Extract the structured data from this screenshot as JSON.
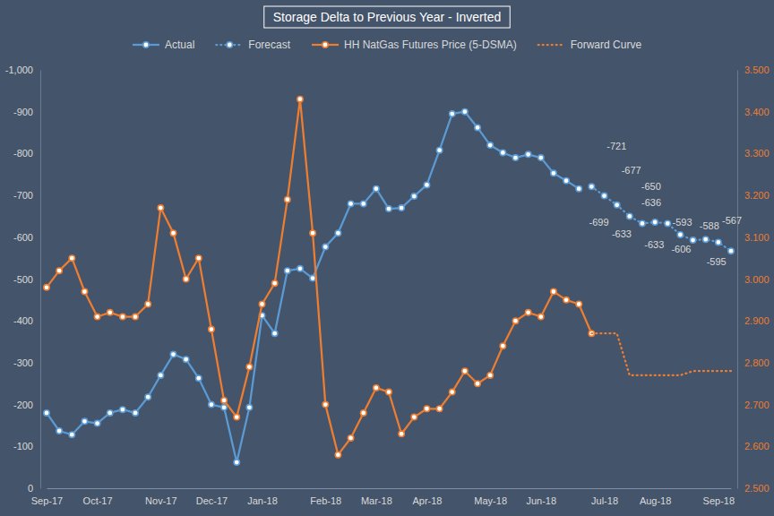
{
  "chart_data": {
    "type": "line",
    "title": "Storage Delta to Previous Year - Inverted",
    "categories": [
      "Sep-17",
      null,
      null,
      null,
      "Oct-17",
      null,
      null,
      null,
      null,
      "Nov-17",
      null,
      null,
      null,
      "Dec-17",
      null,
      null,
      null,
      "Jan-18",
      null,
      null,
      null,
      null,
      "Feb-18",
      null,
      null,
      null,
      "Mar-18",
      null,
      null,
      null,
      "Apr-18",
      null,
      null,
      null,
      null,
      "May-18",
      null,
      null,
      null,
      "Jun-18",
      null,
      null,
      null,
      null,
      "Jul-18",
      null,
      null,
      null,
      "Aug-18",
      null,
      null,
      null,
      null,
      "Sep-18",
      null
    ],
    "series": [
      {
        "name": "Actual",
        "color": "#5B9BD5",
        "marker": "circle",
        "line_style": "solid",
        "values": [
          -180,
          -137,
          -128,
          -160,
          -155,
          -180,
          -188,
          -180,
          -218,
          -270,
          -320,
          -308,
          -263,
          -200,
          -193,
          -62,
          -193,
          -413,
          -370,
          -520,
          -525,
          -502,
          -577,
          -610,
          -680,
          -680,
          -716,
          -668,
          -670,
          -698,
          -725,
          -808,
          -895,
          -900,
          -862,
          -820,
          -802,
          -790,
          -798,
          -790,
          -753,
          -735,
          -716,
          null,
          null,
          null,
          null,
          null,
          null,
          null,
          null,
          null,
          null,
          null,
          null
        ]
      },
      {
        "name": "Forecast",
        "color": "#5B9BD5",
        "marker": "circle",
        "line_style": "dotted",
        "data_labels": true,
        "values": [
          null,
          null,
          null,
          null,
          null,
          null,
          null,
          null,
          null,
          null,
          null,
          null,
          null,
          null,
          null,
          null,
          null,
          null,
          null,
          null,
          null,
          null,
          null,
          null,
          null,
          null,
          null,
          null,
          null,
          null,
          null,
          null,
          null,
          null,
          null,
          null,
          null,
          null,
          null,
          null,
          null,
          null,
          null,
          -721,
          -699,
          -677,
          -650,
          -633,
          -636,
          -633,
          -606,
          -593,
          -595,
          -588,
          -567
        ]
      },
      {
        "name": "HH NatGas Futures Price (5-DSMA)",
        "color": "#ED7D31",
        "marker": "circle",
        "line_style": "solid",
        "axis": "y2",
        "values": [
          2.98,
          3.02,
          3.05,
          2.97,
          2.91,
          2.92,
          2.91,
          2.91,
          2.94,
          3.17,
          3.11,
          3,
          3.05,
          2.88,
          2.71,
          2.67,
          2.79,
          2.94,
          2.99,
          3.19,
          3.43,
          3.11,
          2.7,
          2.58,
          2.62,
          2.68,
          2.74,
          2.73,
          2.63,
          2.67,
          2.69,
          2.69,
          2.73,
          2.78,
          2.75,
          2.77,
          2.84,
          2.9,
          2.92,
          2.91,
          2.97,
          2.95,
          2.94,
          2.87,
          null,
          null,
          null,
          null,
          null,
          null,
          null,
          null,
          null,
          null,
          null
        ]
      },
      {
        "name": "Forward Curve",
        "color": "#ED7D31",
        "marker": "none",
        "line_style": "dotted",
        "axis": "y2",
        "values": [
          null,
          null,
          null,
          null,
          null,
          null,
          null,
          null,
          null,
          null,
          null,
          null,
          null,
          null,
          null,
          null,
          null,
          null,
          null,
          null,
          null,
          null,
          null,
          null,
          null,
          null,
          null,
          null,
          null,
          null,
          null,
          null,
          null,
          null,
          null,
          null,
          null,
          null,
          null,
          null,
          null,
          null,
          null,
          2.87,
          2.87,
          2.87,
          2.77,
          2.77,
          2.77,
          2.77,
          2.77,
          2.78,
          2.78,
          2.78,
          2.78
        ]
      }
    ],
    "ylim": [
      0,
      -1000
    ],
    "yticks": [
      0,
      -100,
      -200,
      -300,
      -400,
      -500,
      -600,
      -700,
      -800,
      -900,
      {
        "value": -1000,
        "label": "-1,000"
      }
    ],
    "y2lim": [
      2.5,
      3.5
    ],
    "y2ticks": [
      {
        "value": 2.5,
        "label": "2.500"
      },
      {
        "value": 2.6,
        "label": "2.600"
      },
      {
        "value": 2.7,
        "label": "2.700"
      },
      {
        "value": 2.8,
        "label": "2.800"
      },
      {
        "value": 2.9,
        "label": "2.900"
      },
      {
        "value": 3.0,
        "label": "3.000"
      },
      {
        "value": 3.1,
        "label": "3.100"
      },
      {
        "value": 3.2,
        "label": "3.200"
      },
      {
        "value": 3.3,
        "label": "3.300"
      },
      {
        "value": 3.4,
        "label": "3.400"
      },
      {
        "value": 3.5,
        "label": "3.500"
      }
    ],
    "grid": false,
    "legend": "top"
  }
}
